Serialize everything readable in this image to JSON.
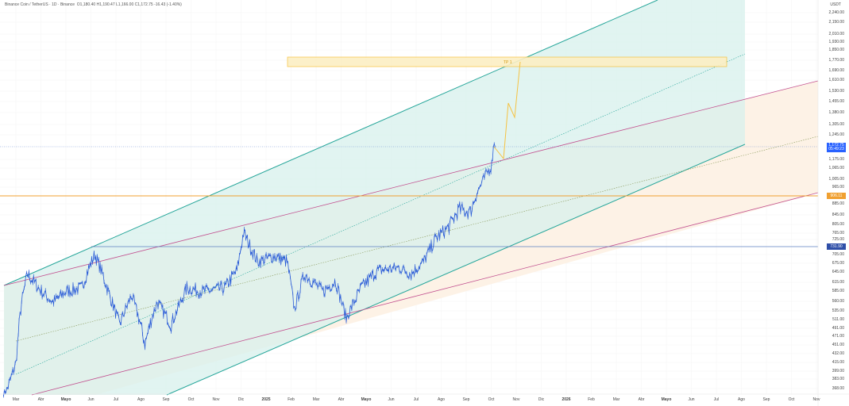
{
  "header": {
    "symbol": "Binance Coin / TetherUS · 1D · Binance",
    "ohlc": "O1,180.40 H1,190.47 L1,166.00 C1,172.75 -16.43 (-1.40%)"
  },
  "chart_data": {
    "type": "line",
    "title": "",
    "currency": "USDT",
    "y_ticks": [
      "2,240.00",
      "2,150.00",
      "2,010.00",
      "1,930.00",
      "1,850.00",
      "1,770.00",
      "1,690.00",
      "1,610.00",
      "1,530.00",
      "1,455.00",
      "1,380.00",
      "1,305.00",
      "1,245.00",
      "1,175.00",
      "1,065.00",
      "1,005.00",
      "965.00",
      "885.00",
      "845.00",
      "805.00",
      "765.00",
      "725.00",
      "705.00",
      "675.00",
      "645.00",
      "615.00",
      "585.00",
      "560.00",
      "535.00",
      "511.00",
      "491.00",
      "471.00",
      "451.00",
      "432.00",
      "415.00",
      "399.00",
      "383.00",
      "368.00"
    ],
    "x_ticks": [
      "Mar",
      "Abr",
      "Mayo",
      "Jun",
      "Jul",
      "Ago",
      "Sep",
      "Oct",
      "Nov",
      "Dic",
      "2025",
      "Feb",
      "Mar",
      "Abr",
      "Mayo",
      "Jun",
      "Jul",
      "Ago",
      "Sep",
      "Oct",
      "Nov",
      "Dic",
      "2026",
      "Feb",
      "Mar",
      "Abr",
      "Mayo",
      "Jun",
      "Jul",
      "Ago",
      "Sep",
      "Oct",
      "Nov"
    ],
    "series": [
      [
        "2024-02-15",
        345
      ],
      [
        "2024-03-01",
        420
      ],
      [
        "2024-03-08",
        560
      ],
      [
        "2024-03-15",
        640
      ],
      [
        "2024-04-01",
        590
      ],
      [
        "2024-04-15",
        560
      ],
      [
        "2024-05-01",
        590
      ],
      [
        "2024-05-20",
        600
      ],
      [
        "2024-06-05",
        705
      ],
      [
        "2024-06-20",
        600
      ],
      [
        "2024-07-05",
        500
      ],
      [
        "2024-07-20",
        580
      ],
      [
        "2024-08-05",
        460
      ],
      [
        "2024-08-20",
        560
      ],
      [
        "2024-09-06",
        500
      ],
      [
        "2024-09-25",
        600
      ],
      [
        "2024-10-15",
        590
      ],
      [
        "2024-11-10",
        600
      ],
      [
        "2024-11-25",
        650
      ],
      [
        "2024-12-03",
        780
      ],
      [
        "2024-12-20",
        680
      ],
      [
        "2025-01-10",
        700
      ],
      [
        "2025-01-25",
        680
      ],
      [
        "2025-02-03",
        540
      ],
      [
        "2025-02-15",
        640
      ],
      [
        "2025-03-10",
        590
      ],
      [
        "2025-03-25",
        620
      ],
      [
        "2025-04-07",
        515
      ],
      [
        "2025-04-25",
        600
      ],
      [
        "2025-05-15",
        650
      ],
      [
        "2025-06-10",
        660
      ],
      [
        "2025-06-25",
        640
      ],
      [
        "2025-07-10",
        680
      ],
      [
        "2025-07-25",
        760
      ],
      [
        "2025-08-10",
        800
      ],
      [
        "2025-08-22",
        860
      ],
      [
        "2025-09-05",
        850
      ],
      [
        "2025-09-15",
        940
      ],
      [
        "2025-09-25",
        1030
      ],
      [
        "2025-10-01",
        1070
      ],
      [
        "2025-10-03",
        1190
      ],
      [
        "2025-10-05",
        1172.75
      ]
    ],
    "last_price": "1,172.75",
    "countdown": "05:49:23",
    "level_orange": "906.11",
    "level_blue": "731.90",
    "target_label": "TP 1",
    "colors": {
      "price": "#2a5bd7",
      "channel_teal": "#26a69a",
      "channel_pink": "#c2508f",
      "orange_level": "#f0a030",
      "blue_level": "#5b7fc0",
      "target": "#f5c242"
    }
  }
}
